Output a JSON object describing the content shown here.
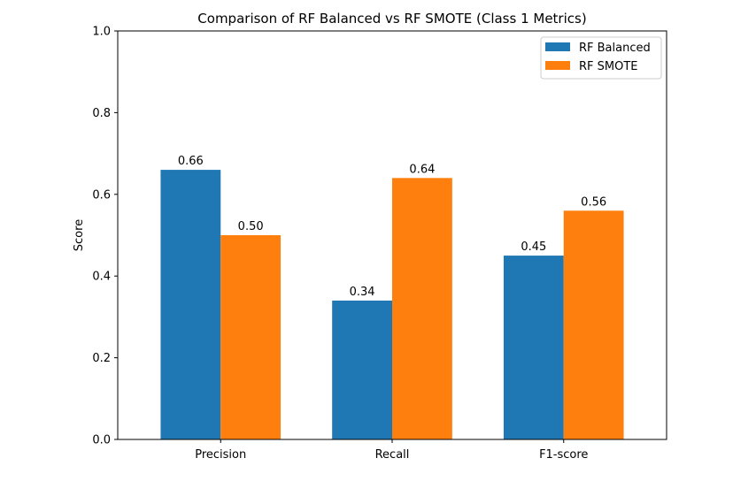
{
  "chart_data": {
    "type": "bar",
    "title": "Comparison of RF Balanced vs RF SMOTE (Class 1 Metrics)",
    "xlabel": "",
    "ylabel": "Score",
    "categories": [
      "Precision",
      "Recall",
      "F1-score"
    ],
    "series": [
      {
        "name": "RF Balanced",
        "color": "#1f77b4",
        "values": [
          0.66,
          0.34,
          0.45
        ],
        "labels": [
          "0.66",
          "0.34",
          "0.45"
        ]
      },
      {
        "name": "RF SMOTE",
        "color": "#ff7f0e",
        "values": [
          0.5,
          0.64,
          0.56
        ],
        "labels": [
          "0.50",
          "0.64",
          "0.56"
        ]
      }
    ],
    "ylim": [
      0,
      1.0
    ],
    "yticks": [
      0.0,
      0.2,
      0.4,
      0.6,
      0.8,
      1.0
    ],
    "ytick_labels": [
      "0.0",
      "0.2",
      "0.4",
      "0.6",
      "0.8",
      "1.0"
    ],
    "grid": false,
    "legend_position": "top-right"
  }
}
